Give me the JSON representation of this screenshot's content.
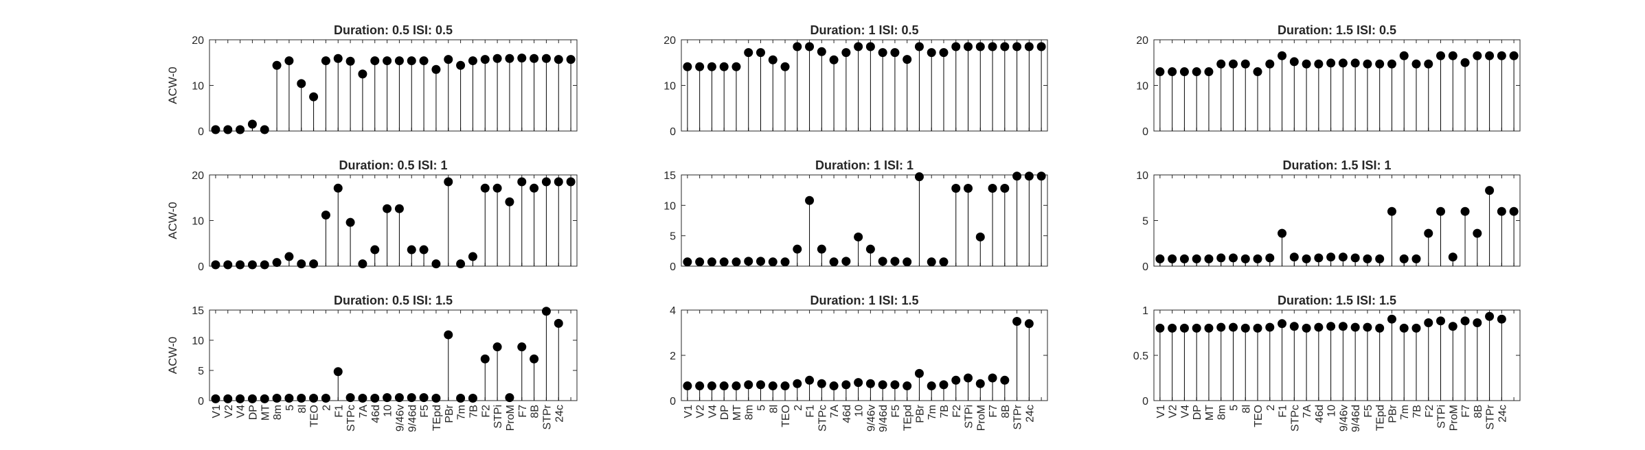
{
  "chart_data": [
    {
      "type": "stem",
      "title": "Duration: 0.5 ISI: 0.5",
      "ylabel": "ACW-0",
      "ylim": [
        0,
        20
      ],
      "yticks": [
        0,
        10,
        20
      ],
      "xticklabels": [],
      "values": [
        0.3,
        0.3,
        0.3,
        1.5,
        0.3,
        14.4,
        15.4,
        10.4,
        7.5,
        15.4,
        15.9,
        15.3,
        12.5,
        15.4,
        15.4,
        15.4,
        15.4,
        15.4,
        13.5,
        15.7,
        14.4,
        15.4,
        15.7,
        15.9,
        15.9,
        16.0,
        15.9,
        15.9,
        15.7,
        15.7
      ]
    },
    {
      "type": "stem",
      "title": "Duration: 1 ISI: 0.5",
      "ylabel": "",
      "ylim": [
        0,
        20
      ],
      "yticks": [
        0,
        10,
        20
      ],
      "xticklabels": [],
      "values": [
        14.1,
        14.1,
        14.1,
        14.1,
        14.1,
        17.2,
        17.2,
        15.6,
        14.1,
        18.5,
        18.5,
        17.4,
        15.6,
        17.2,
        18.5,
        18.5,
        17.2,
        17.2,
        15.7,
        18.5,
        17.2,
        17.2,
        18.5,
        18.5,
        18.5,
        18.5,
        18.5,
        18.5,
        18.5,
        18.5
      ]
    },
    {
      "type": "stem",
      "title": "Duration: 1.5 ISI: 0.5",
      "ylabel": "",
      "ylim": [
        0,
        20
      ],
      "yticks": [
        0,
        10,
        20
      ],
      "xticklabels": [],
      "values": [
        13.0,
        13.0,
        13.0,
        13.0,
        13.0,
        14.7,
        14.7,
        14.7,
        13.0,
        14.7,
        16.5,
        15.2,
        14.7,
        14.7,
        14.9,
        14.9,
        14.9,
        14.7,
        14.7,
        14.7,
        16.5,
        14.7,
        14.7,
        16.5,
        16.5,
        15.0,
        16.5,
        16.5,
        16.5,
        16.5
      ]
    },
    {
      "type": "stem",
      "title": "Duration: 0.5 ISI: 1",
      "ylabel": "ACW-0",
      "ylim": [
        0,
        20
      ],
      "yticks": [
        0,
        10,
        20
      ],
      "xticklabels": [],
      "values": [
        0.3,
        0.3,
        0.3,
        0.3,
        0.3,
        0.8,
        2.1,
        0.5,
        0.5,
        11.2,
        17.1,
        9.6,
        0.5,
        3.6,
        12.6,
        12.6,
        3.6,
        3.6,
        0.5,
        18.5,
        0.5,
        2.1,
        17.1,
        17.1,
        14.1,
        18.5,
        17.1,
        18.5,
        18.5,
        18.5
      ]
    },
    {
      "type": "stem",
      "title": "Duration: 1 ISI: 1",
      "ylabel": "",
      "ylim": [
        0,
        15
      ],
      "yticks": [
        0,
        5,
        10,
        15
      ],
      "xticklabels": [],
      "values": [
        0.7,
        0.7,
        0.7,
        0.7,
        0.7,
        0.8,
        0.8,
        0.7,
        0.7,
        2.8,
        10.8,
        2.8,
        0.7,
        0.8,
        4.8,
        2.8,
        0.8,
        0.8,
        0.7,
        14.7,
        0.7,
        0.7,
        12.8,
        12.8,
        4.8,
        12.8,
        12.8,
        14.8,
        14.8,
        14.8
      ]
    },
    {
      "type": "stem",
      "title": "Duration: 1.5 ISI: 1",
      "ylabel": "",
      "ylim": [
        0,
        10
      ],
      "yticks": [
        0,
        5,
        10
      ],
      "xticklabels": [],
      "values": [
        0.8,
        0.8,
        0.8,
        0.8,
        0.8,
        0.9,
        0.9,
        0.8,
        0.8,
        0.9,
        3.6,
        1.0,
        0.8,
        0.9,
        1.0,
        1.0,
        0.9,
        0.8,
        0.8,
        6.0,
        0.8,
        0.8,
        3.6,
        6.0,
        1.0,
        6.0,
        3.6,
        8.3,
        6.0,
        6.0
      ]
    },
    {
      "type": "stem",
      "title": "Duration: 0.5 ISI: 1.5",
      "ylabel": "ACW-0",
      "ylim": [
        0,
        15
      ],
      "yticks": [
        0,
        5,
        10,
        15
      ],
      "xticklabels": [
        "V1",
        "V2",
        "V4",
        "DP",
        "MT",
        "8m",
        "5",
        "8l",
        "TEO",
        "2",
        "F1",
        "STPc",
        "7A",
        "46d",
        "10",
        "9/46v",
        "9/46d",
        "F5",
        "TEpd",
        "PBr",
        "7m",
        "7B",
        "F2",
        "STPi",
        "ProM",
        "F7",
        "8B",
        "STPr",
        "24c"
      ],
      "values": [
        0.3,
        0.3,
        0.3,
        0.3,
        0.3,
        0.4,
        0.4,
        0.4,
        0.4,
        0.4,
        4.8,
        0.5,
        0.4,
        0.4,
        0.5,
        0.5,
        0.5,
        0.5,
        0.4,
        10.9,
        0.4,
        0.4,
        6.9,
        8.9,
        0.5,
        8.9,
        6.9,
        14.8,
        12.8
      ]
    },
    {
      "type": "stem",
      "title": "Duration: 1 ISI: 1.5",
      "ylabel": "",
      "ylim": [
        0,
        4
      ],
      "yticks": [
        0,
        2,
        4
      ],
      "xticklabels": [
        "V1",
        "V2",
        "V4",
        "DP",
        "MT",
        "8m",
        "5",
        "8l",
        "TEO",
        "2",
        "F1",
        "STPc",
        "7A",
        "46d",
        "10",
        "9/46v",
        "9/46d",
        "F5",
        "TEpd",
        "PBr",
        "7m",
        "7B",
        "F2",
        "STPi",
        "ProM",
        "F7",
        "8B",
        "STPr",
        "24c"
      ],
      "values": [
        0.65,
        0.65,
        0.65,
        0.65,
        0.65,
        0.7,
        0.7,
        0.65,
        0.65,
        0.75,
        0.9,
        0.75,
        0.65,
        0.7,
        0.8,
        0.75,
        0.7,
        0.7,
        0.65,
        1.2,
        0.65,
        0.7,
        0.9,
        1.0,
        0.75,
        1.0,
        0.9,
        3.5,
        3.4
      ]
    },
    {
      "type": "stem",
      "title": "Duration: 1.5 ISI: 1.5",
      "ylabel": "",
      "ylim": [
        0,
        1
      ],
      "yticks": [
        0,
        0.5,
        1
      ],
      "xticklabels": [
        "V1",
        "V2",
        "V4",
        "DP",
        "MT",
        "8m",
        "5",
        "8l",
        "TEO",
        "2",
        "F1",
        "STPc",
        "7A",
        "46d",
        "10",
        "9/46v",
        "9/46d",
        "F5",
        "TEpd",
        "PBr",
        "7m",
        "7B",
        "F2",
        "STPi",
        "ProM",
        "F7",
        "8B",
        "STPr",
        "24c"
      ],
      "values": [
        0.8,
        0.8,
        0.8,
        0.8,
        0.8,
        0.81,
        0.81,
        0.8,
        0.8,
        0.81,
        0.85,
        0.82,
        0.8,
        0.81,
        0.82,
        0.82,
        0.81,
        0.81,
        0.8,
        0.9,
        0.8,
        0.8,
        0.86,
        0.88,
        0.82,
        0.88,
        0.86,
        0.93,
        0.9
      ]
    }
  ]
}
